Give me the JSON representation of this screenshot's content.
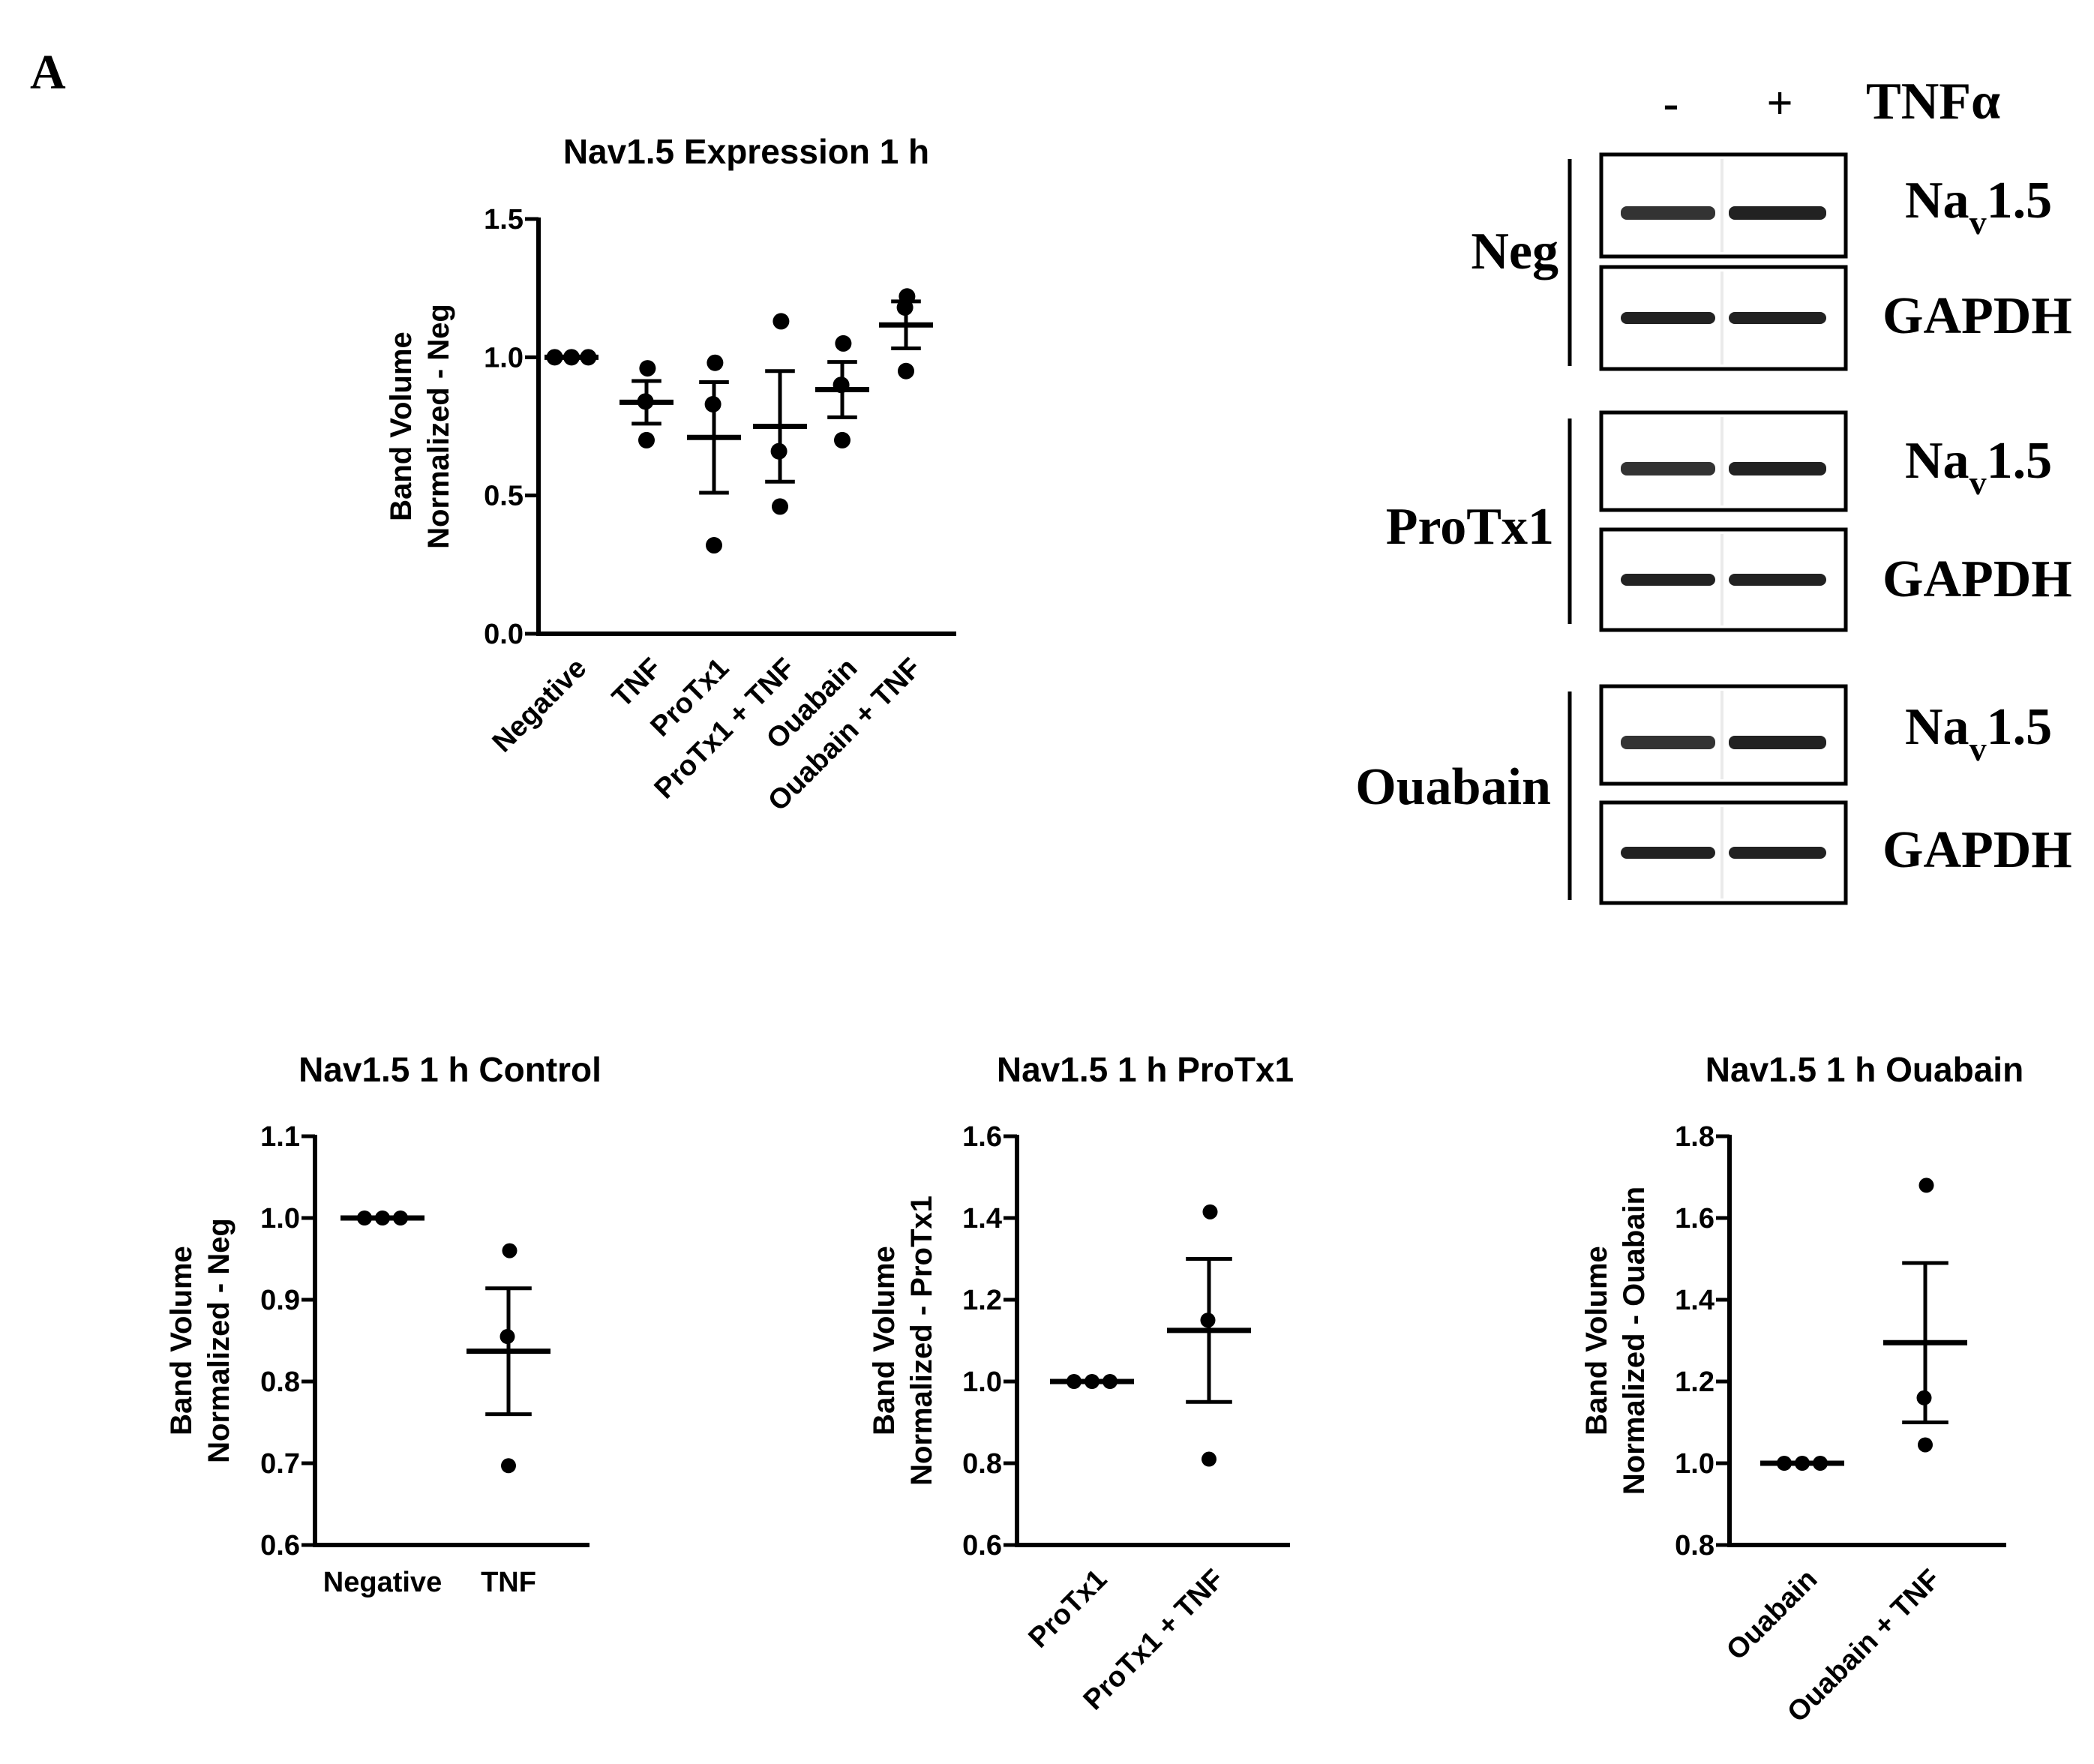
{
  "panel_label": "A",
  "blot": {
    "lane_signs": [
      "-",
      "+"
    ],
    "treatment_label": "TNFα",
    "groups": [
      {
        "name": "Neg",
        "bands": [
          {
            "label": "Na",
            "sub": "v",
            "rest": "1.5"
          },
          {
            "label": "GAPDH"
          }
        ]
      },
      {
        "name": "ProTx1",
        "bands": [
          {
            "label": "Na",
            "sub": "v",
            "rest": "1.5"
          },
          {
            "label": "GAPDH"
          }
        ]
      },
      {
        "name": "Ouabain",
        "bands": [
          {
            "label": "Na",
            "sub": "v",
            "rest": "1.5"
          },
          {
            "label": "GAPDH"
          }
        ]
      }
    ]
  },
  "chart_data": [
    {
      "type": "scatter",
      "title": "Nav1.5 Expression 1 h",
      "ylabel_lines": [
        "Band Volume",
        "Normalized - Neg"
      ],
      "ylim": [
        0,
        1.5
      ],
      "yticks": [
        0.0,
        0.5,
        1.0,
        1.5
      ],
      "ytick_labels": [
        "0.0",
        "0.5",
        "1.0",
        "1.5"
      ],
      "categories": [
        "Negative",
        "TNF",
        "ProTx1",
        "ProTx1 + TNF",
        "Ouabain",
        "Ouabain + TNF"
      ],
      "points": [
        [
          1.0,
          1.0,
          1.0
        ],
        [
          0.96,
          0.84,
          0.7
        ],
        [
          0.98,
          0.83,
          0.32
        ],
        [
          1.13,
          0.66,
          0.46
        ],
        [
          1.05,
          0.9,
          0.7
        ],
        [
          1.22,
          1.18,
          0.95
        ]
      ],
      "mean": [
        1.0,
        0.837,
        0.71,
        0.75,
        0.883,
        1.117
      ],
      "sem": [
        0.0,
        0.077,
        0.2,
        0.2,
        0.1,
        0.085
      ],
      "rotated_ticks": true
    },
    {
      "type": "scatter",
      "title": "Nav1.5 1 h Control",
      "ylabel_lines": [
        "Band Volume",
        "Normalized - Neg"
      ],
      "ylim": [
        0.6,
        1.1
      ],
      "yticks": [
        0.6,
        0.7,
        0.8,
        0.9,
        1.0,
        1.1
      ],
      "ytick_labels": [
        "0.6",
        "0.7",
        "0.8",
        "0.9",
        "1.0",
        "1.1"
      ],
      "categories": [
        "Negative",
        "TNF"
      ],
      "points": [
        [
          1.0,
          1.0,
          1.0
        ],
        [
          0.96,
          0.855,
          0.697
        ]
      ],
      "mean": [
        1.0,
        0.837
      ],
      "sem": [
        0.0,
        0.077
      ],
      "rotated_ticks": false
    },
    {
      "type": "scatter",
      "title": "Nav1.5 1 h ProTx1",
      "ylabel_lines": [
        "Band Volume",
        "Normalized - ProTx1"
      ],
      "ylim": [
        0.6,
        1.6
      ],
      "yticks": [
        0.6,
        0.8,
        1.0,
        1.2,
        1.4,
        1.6
      ],
      "ytick_labels": [
        "0.6",
        "0.8",
        "1.0",
        "1.2",
        "1.4",
        "1.6"
      ],
      "categories": [
        "ProTx1",
        "ProTx1 + TNF"
      ],
      "points": [
        [
          1.0,
          1.0,
          1.0
        ],
        [
          1.415,
          1.15,
          0.81
        ]
      ],
      "mean": [
        1.0,
        1.125
      ],
      "sem": [
        0.0,
        0.175
      ],
      "rotated_ticks": true
    },
    {
      "type": "scatter",
      "title": "Nav1.5 1 h Ouabain",
      "ylabel_lines": [
        "Band Volume",
        "Normalized - Ouabain"
      ],
      "ylim": [
        0.8,
        1.8
      ],
      "yticks": [
        0.8,
        1.0,
        1.2,
        1.4,
        1.6,
        1.8
      ],
      "ytick_labels": [
        "0.8",
        "1.0",
        "1.2",
        "1.4",
        "1.6",
        "1.8"
      ],
      "categories": [
        "Ouabain",
        "Ouabain + TNF"
      ],
      "points": [
        [
          1.0,
          1.0,
          1.0
        ],
        [
          1.68,
          1.16,
          1.045
        ]
      ],
      "mean": [
        1.0,
        1.295
      ],
      "sem": [
        0.0,
        0.195
      ],
      "rotated_ticks": true
    }
  ]
}
